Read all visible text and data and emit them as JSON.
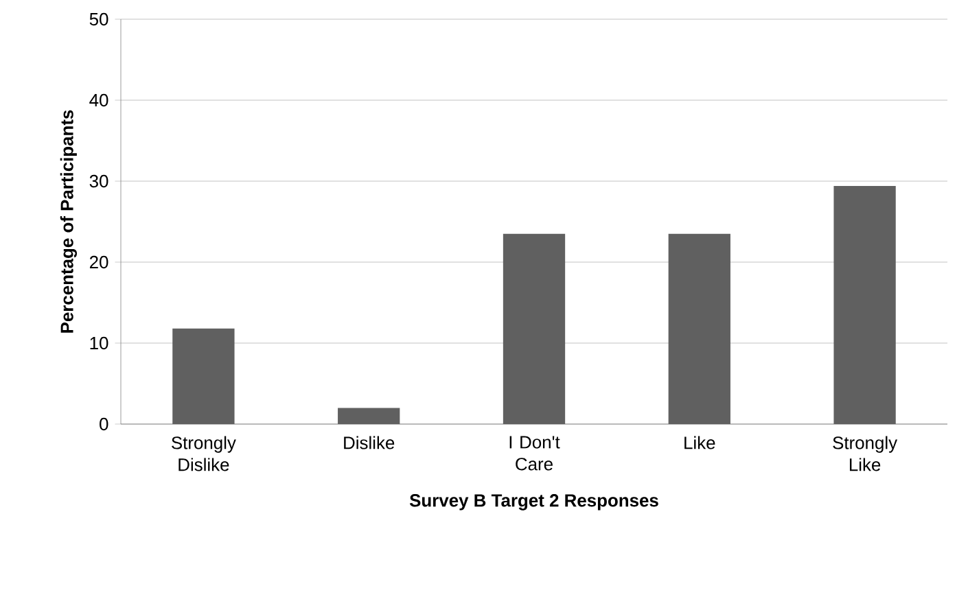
{
  "chart_data": {
    "type": "bar",
    "xlabel": "Survey B Target 2 Responses",
    "ylabel": "Percentage of Participants",
    "categories": [
      "Strongly Dislike",
      "Dislike",
      "I Don't Care",
      "Like",
      "Strongly Like"
    ],
    "values": [
      11.8,
      2,
      23.5,
      23.5,
      29.4
    ],
    "color": "#606060",
    "ylim": [
      0,
      50
    ],
    "yticks": [
      0,
      10,
      20,
      30,
      40,
      50
    ],
    "grid": "y"
  }
}
